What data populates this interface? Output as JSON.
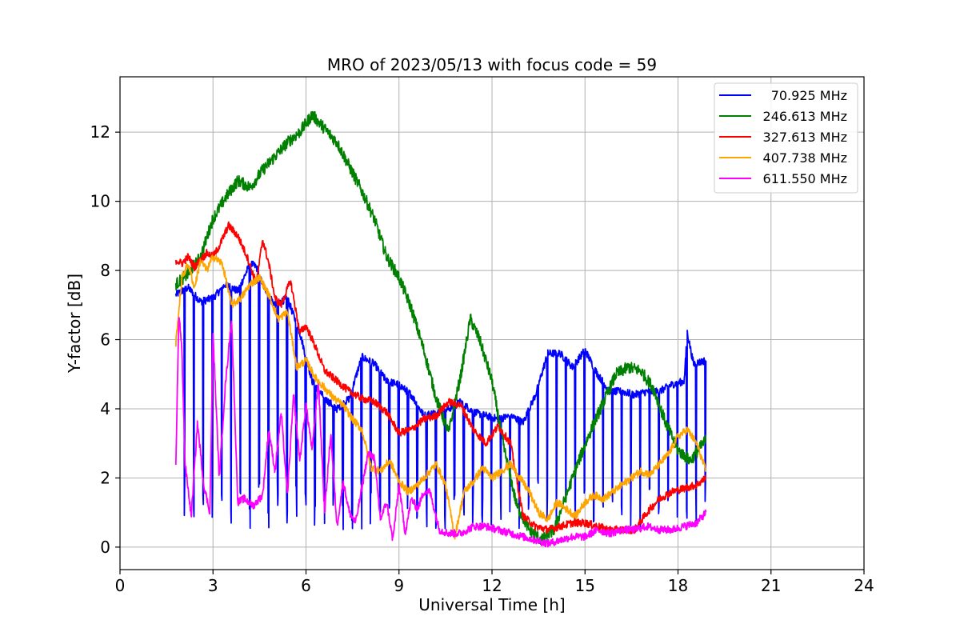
{
  "chart_data": {
    "type": "line",
    "title": "MRO of 2023/05/13 with focus code = 59",
    "xlabel": "Universal Time [h]",
    "ylabel": "Y-factor [dB]",
    "xlim": [
      0,
      24
    ],
    "ylim": [
      -0.65,
      13.6
    ],
    "xticks": [
      0,
      3,
      6,
      9,
      12,
      15,
      18,
      21,
      24
    ],
    "yticks": [
      0,
      2,
      4,
      6,
      8,
      10,
      12
    ],
    "grid": true,
    "legend_position": "top-right",
    "series": [
      {
        "name": "70.925 MHz",
        "color": "#0000ff",
        "x": [
          1.8,
          2.2,
          2.6,
          3.0,
          3.4,
          3.8,
          4.2,
          4.4,
          4.6,
          5.0,
          5.4,
          5.8,
          6.2,
          6.6,
          7.0,
          7.4,
          7.8,
          8.2,
          8.6,
          9.0,
          9.4,
          9.8,
          10.2,
          10.6,
          11.0,
          11.4,
          11.8,
          12.2,
          12.6,
          13.0,
          13.4,
          13.8,
          14.2,
          14.6,
          15.0,
          15.4,
          15.8,
          16.2,
          16.6,
          17.0,
          17.4,
          17.8,
          18.2,
          18.3,
          18.5,
          18.9
        ],
        "y": [
          7.3,
          7.5,
          7.1,
          7.2,
          7.6,
          7.4,
          8.2,
          8.1,
          7.6,
          7.0,
          7.2,
          6.2,
          4.8,
          4.3,
          4.0,
          4.3,
          5.5,
          5.3,
          4.8,
          4.7,
          4.4,
          3.8,
          3.9,
          4.0,
          4.2,
          3.9,
          3.8,
          3.7,
          3.8,
          3.6,
          4.4,
          5.6,
          5.6,
          5.2,
          5.7,
          5.0,
          4.5,
          4.5,
          4.4,
          4.5,
          4.5,
          4.7,
          4.8,
          6.2,
          5.3,
          5.4
        ],
        "dip_spacing_h": 0.3,
        "dip_floor_dB": 0.5
      },
      {
        "name": "246.613 MHz",
        "color": "#008000",
        "x": [
          1.8,
          2.2,
          2.6,
          3.0,
          3.4,
          3.8,
          4.2,
          4.6,
          5.0,
          5.4,
          5.8,
          6.2,
          6.6,
          7.0,
          7.4,
          7.8,
          8.2,
          8.6,
          9.0,
          9.4,
          9.8,
          10.2,
          10.6,
          11.0,
          11.3,
          11.6,
          12.0,
          12.4,
          12.8,
          13.2,
          13.6,
          14.0,
          14.4,
          14.8,
          15.2,
          15.6,
          16.0,
          16.4,
          16.8,
          17.2,
          17.6,
          18.0,
          18.4,
          18.9
        ],
        "y": [
          7.6,
          7.9,
          8.4,
          9.5,
          10.1,
          10.6,
          10.4,
          10.9,
          11.3,
          11.7,
          12.0,
          12.5,
          12.1,
          11.7,
          11.0,
          10.3,
          9.5,
          8.4,
          7.8,
          6.9,
          5.7,
          4.3,
          3.3,
          5.0,
          6.6,
          6.0,
          4.8,
          2.8,
          1.2,
          0.5,
          0.2,
          0.5,
          1.5,
          2.5,
          3.4,
          4.2,
          5.0,
          5.2,
          5.1,
          4.6,
          3.6,
          2.8,
          2.5,
          3.1
        ]
      },
      {
        "name": "327.613 MHz",
        "color": "#ff0000",
        "x": [
          1.8,
          2.0,
          2.2,
          2.4,
          2.6,
          2.8,
          3.0,
          3.2,
          3.5,
          3.8,
          4.1,
          4.4,
          4.6,
          4.8,
          5.0,
          5.2,
          5.5,
          5.8,
          6.0,
          6.3,
          6.6,
          7.0,
          7.4,
          7.8,
          8.2,
          8.6,
          9.0,
          9.4,
          9.8,
          10.2,
          10.6,
          11.0,
          11.4,
          11.8,
          12.2,
          12.6,
          13.0,
          13.4,
          13.8,
          14.2,
          14.6,
          15.0,
          15.4,
          15.8,
          16.2,
          16.6,
          17.0,
          17.4,
          17.8,
          18.2,
          18.6,
          18.9
        ],
        "y": [
          8.3,
          8.2,
          8.4,
          8.1,
          8.3,
          8.5,
          8.4,
          8.7,
          9.3,
          9.0,
          8.4,
          7.6,
          8.9,
          8.2,
          7.2,
          7.0,
          7.7,
          6.2,
          6.4,
          5.8,
          5.1,
          4.8,
          4.5,
          4.3,
          4.2,
          3.9,
          3.3,
          3.4,
          3.7,
          3.8,
          4.2,
          4.1,
          3.4,
          3.0,
          3.5,
          3.0,
          0.9,
          0.6,
          0.5,
          0.6,
          0.7,
          0.7,
          0.6,
          0.5,
          0.5,
          0.5,
          1.0,
          1.4,
          1.6,
          1.7,
          1.8,
          2.0
        ]
      },
      {
        "name": "407.738 MHz",
        "color": "#ffa500",
        "x": [
          1.8,
          2.0,
          2.2,
          2.4,
          2.6,
          2.8,
          3.0,
          3.3,
          3.6,
          3.9,
          4.2,
          4.5,
          4.8,
          5.1,
          5.4,
          5.7,
          6.0,
          6.3,
          6.6,
          6.9,
          7.2,
          7.5,
          7.8,
          8.1,
          8.4,
          8.7,
          9.0,
          9.3,
          9.6,
          9.9,
          10.2,
          10.5,
          10.8,
          11.1,
          11.4,
          11.7,
          12.0,
          12.3,
          12.6,
          12.9,
          13.2,
          13.5,
          13.8,
          14.1,
          14.4,
          14.7,
          15.0,
          15.3,
          15.6,
          15.9,
          16.2,
          16.5,
          16.8,
          17.1,
          17.4,
          17.7,
          18.0,
          18.3,
          18.6,
          18.9
        ],
        "y": [
          5.9,
          7.8,
          8.2,
          7.5,
          8.3,
          8.0,
          8.4,
          8.2,
          7.0,
          7.2,
          7.6,
          7.8,
          7.3,
          6.6,
          6.8,
          5.2,
          5.4,
          4.9,
          4.6,
          4.3,
          4.1,
          3.7,
          3.4,
          2.3,
          2.2,
          2.5,
          1.9,
          1.6,
          1.8,
          2.1,
          2.4,
          1.8,
          0.3,
          1.6,
          1.9,
          2.3,
          2.0,
          2.2,
          2.4,
          2.0,
          1.6,
          1.0,
          0.8,
          1.3,
          1.1,
          0.9,
          1.3,
          1.5,
          1.4,
          1.6,
          1.8,
          2.0,
          2.2,
          2.1,
          2.4,
          2.7,
          3.2,
          3.4,
          3.0,
          2.2
        ]
      },
      {
        "name": "611.550 MHz",
        "color": "#ff00ff",
        "x": [
          1.8,
          1.9,
          2.0,
          2.1,
          2.3,
          2.5,
          2.7,
          2.9,
          3.0,
          3.2,
          3.4,
          3.6,
          3.8,
          4.0,
          4.3,
          4.6,
          4.8,
          5.0,
          5.2,
          5.4,
          5.6,
          5.8,
          6.0,
          6.2,
          6.4,
          6.6,
          6.8,
          7.0,
          7.2,
          7.4,
          7.6,
          7.8,
          8.0,
          8.2,
          8.4,
          8.6,
          8.8,
          9.0,
          9.2,
          9.4,
          9.6,
          9.8,
          10.0,
          10.3,
          10.6,
          11.0,
          11.4,
          11.8,
          12.2,
          12.6,
          13.0,
          13.4,
          13.8,
          14.2,
          14.6,
          15.0,
          15.4,
          15.8,
          16.2,
          16.6,
          17.0,
          17.4,
          17.8,
          18.2,
          18.6,
          18.9
        ],
        "y": [
          2.3,
          6.8,
          5.6,
          2.4,
          0.9,
          3.6,
          1.8,
          1.0,
          6.2,
          2.0,
          4.7,
          6.6,
          1.3,
          1.4,
          1.2,
          1.5,
          3.4,
          2.2,
          3.9,
          1.5,
          4.4,
          2.5,
          4.1,
          2.8,
          4.8,
          1.0,
          3.3,
          0.6,
          1.9,
          1.0,
          0.7,
          1.7,
          2.7,
          2.6,
          0.8,
          1.3,
          0.2,
          1.8,
          0.4,
          1.4,
          1.1,
          1.6,
          1.6,
          0.5,
          0.4,
          0.4,
          0.6,
          0.6,
          0.5,
          0.4,
          0.3,
          0.2,
          0.1,
          0.2,
          0.3,
          0.3,
          0.5,
          0.4,
          0.5,
          0.5,
          0.6,
          0.5,
          0.5,
          0.6,
          0.7,
          1.0
        ]
      }
    ]
  }
}
